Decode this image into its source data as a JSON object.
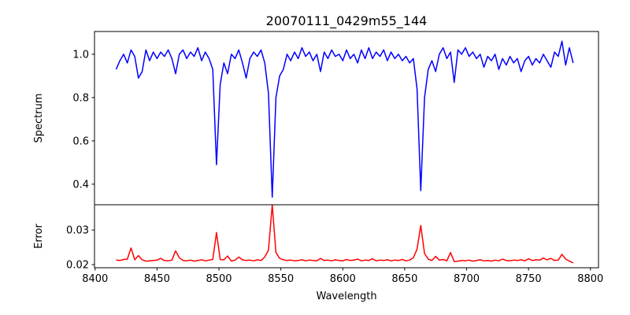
{
  "chart_data": [
    {
      "type": "line",
      "panel": "top",
      "title": "20070111_0429m55_144",
      "xlabel": "",
      "ylabel": "Spectrum",
      "xlim": [
        8399.5,
        8806.5
      ],
      "ylim": [
        0.305,
        1.105
      ],
      "yticks": [
        0.4,
        0.6,
        0.8,
        1.0
      ],
      "ytick_labels": [
        "0.4",
        "0.6",
        "0.8",
        "1.0"
      ],
      "grid": false,
      "series": [
        {
          "name": "Spectrum",
          "color": "#0000ff",
          "x_start": 8417,
          "x_step": 3,
          "values": [
            0.93,
            0.97,
            1.0,
            0.96,
            1.02,
            0.99,
            0.89,
            0.92,
            1.02,
            0.97,
            1.01,
            0.98,
            1.01,
            0.99,
            1.02,
            0.98,
            0.91,
            1.0,
            1.02,
            0.98,
            1.01,
            0.99,
            1.03,
            0.97,
            1.01,
            0.98,
            0.93,
            0.49,
            0.86,
            0.96,
            0.91,
            1.0,
            0.98,
            1.02,
            0.96,
            0.89,
            0.98,
            1.01,
            0.99,
            1.02,
            0.96,
            0.82,
            0.34,
            0.8,
            0.9,
            0.93,
            1.0,
            0.97,
            1.01,
            0.98,
            1.03,
            0.99,
            1.01,
            0.97,
            1.0,
            0.92,
            1.01,
            0.98,
            1.02,
            0.99,
            1.0,
            0.97,
            1.02,
            0.98,
            1.0,
            0.96,
            1.02,
            0.98,
            1.03,
            0.98,
            1.01,
            0.99,
            1.02,
            0.97,
            1.01,
            0.98,
            1.0,
            0.97,
            0.99,
            0.96,
            0.98,
            0.84,
            0.37,
            0.8,
            0.93,
            0.97,
            0.92,
            1.0,
            1.03,
            0.98,
            1.01,
            0.87,
            1.02,
            1.0,
            1.03,
            0.99,
            1.01,
            0.98,
            1.0,
            0.94,
            0.99,
            0.97,
            1.0,
            0.93,
            0.98,
            0.95,
            0.99,
            0.96,
            0.98,
            0.92,
            0.97,
            0.99,
            0.95,
            0.98,
            0.96,
            1.0,
            0.97,
            0.94,
            1.01,
            0.99,
            1.06,
            0.95,
            1.03,
            0.96
          ]
        }
      ]
    },
    {
      "type": "line",
      "panel": "bottom",
      "title": "",
      "xlabel": "Wavelength",
      "ylabel": "Error",
      "xlim": [
        8399.5,
        8806.5
      ],
      "ylim": [
        0.0191,
        0.0373
      ],
      "xticks": [
        8400,
        8450,
        8500,
        8550,
        8600,
        8650,
        8700,
        8750,
        8800
      ],
      "xtick_labels": [
        "8400",
        "8450",
        "8500",
        "8550",
        "8600",
        "8650",
        "8700",
        "8750",
        "8800"
      ],
      "yticks": [
        0.02,
        0.03
      ],
      "ytick_labels": [
        "0.02",
        "0.03"
      ],
      "grid": false,
      "series": [
        {
          "name": "Error",
          "color": "#ff0000",
          "x_start": 8417,
          "x_step": 3,
          "values": [
            0.0213,
            0.0212,
            0.0215,
            0.0216,
            0.0248,
            0.0214,
            0.0226,
            0.0214,
            0.021,
            0.0211,
            0.0212,
            0.0213,
            0.0218,
            0.0212,
            0.0211,
            0.0213,
            0.024,
            0.022,
            0.0212,
            0.0211,
            0.0213,
            0.021,
            0.0212,
            0.0214,
            0.0211,
            0.0213,
            0.0215,
            0.0293,
            0.0215,
            0.0214,
            0.0225,
            0.021,
            0.0213,
            0.0222,
            0.0214,
            0.0212,
            0.0213,
            0.0211,
            0.0214,
            0.0212,
            0.0222,
            0.0242,
            0.0373,
            0.0235,
            0.0218,
            0.0214,
            0.0212,
            0.0213,
            0.0211,
            0.0212,
            0.0214,
            0.0211,
            0.0213,
            0.0212,
            0.0211,
            0.0218,
            0.0212,
            0.0213,
            0.0211,
            0.0214,
            0.0212,
            0.0211,
            0.0215,
            0.0212,
            0.0213,
            0.0216,
            0.0211,
            0.0213,
            0.0212,
            0.0217,
            0.0211,
            0.0213,
            0.0212,
            0.0214,
            0.0211,
            0.0213,
            0.0212,
            0.0215,
            0.0211,
            0.0213,
            0.022,
            0.0245,
            0.0313,
            0.0232,
            0.0216,
            0.0212,
            0.0224,
            0.0213,
            0.0215,
            0.0211,
            0.0235,
            0.0209,
            0.021,
            0.0212,
            0.0211,
            0.0213,
            0.021,
            0.0212,
            0.0214,
            0.0211,
            0.0212,
            0.021,
            0.0213,
            0.0211,
            0.0216,
            0.0212,
            0.0211,
            0.0213,
            0.0212,
            0.0214,
            0.0211,
            0.0217,
            0.0212,
            0.0214,
            0.0213,
            0.0219,
            0.0214,
            0.0218,
            0.0212,
            0.0213,
            0.023,
            0.0216,
            0.021,
            0.0205
          ]
        }
      ]
    }
  ]
}
